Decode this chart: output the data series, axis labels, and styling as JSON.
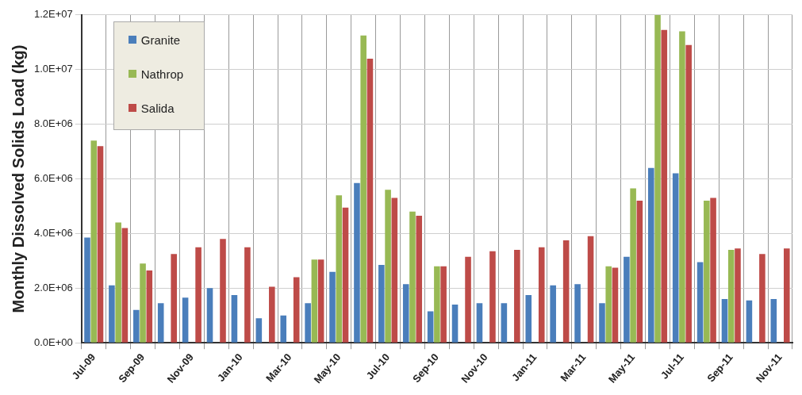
{
  "chart_data": {
    "type": "bar",
    "ylabel": "Monthly Dissolved Solids Load (kg)",
    "categories": [
      "Jul-09",
      null,
      "Sep-09",
      null,
      "Nov-09",
      null,
      "Jan-10",
      null,
      "Mar-10",
      null,
      "May-10",
      null,
      "Jul-10",
      null,
      "Sep-10",
      null,
      "Nov-10",
      null,
      "Jan-11",
      null,
      "Mar-11",
      null,
      "May-11",
      null,
      "Jul-11",
      null,
      "Sep-11",
      null,
      "Nov-11"
    ],
    "series": [
      {
        "name": "Granite",
        "color": "#4a7ebb",
        "values": [
          3850000,
          2100000,
          1200000,
          1450000,
          1650000,
          2000000,
          1750000,
          900000,
          1000000,
          1450000,
          2600000,
          5850000,
          2850000,
          2150000,
          1150000,
          1400000,
          1450000,
          1450000,
          1750000,
          2100000,
          2150000,
          1450000,
          3150000,
          6400000,
          6200000,
          2950000,
          1600000,
          1550000,
          1600000
        ]
      },
      {
        "name": "Nathrop",
        "color": "#98b954",
        "values": [
          7400000,
          4400000,
          2900000,
          null,
          null,
          null,
          null,
          null,
          null,
          3050000,
          5400000,
          11250000,
          5600000,
          4800000,
          2800000,
          null,
          null,
          null,
          null,
          null,
          null,
          2800000,
          5650000,
          12000000,
          11400000,
          5200000,
          3400000,
          null,
          null
        ]
      },
      {
        "name": "Salida",
        "color": "#be4b48",
        "values": [
          7200000,
          4200000,
          2650000,
          3250000,
          3500000,
          3800000,
          3500000,
          2050000,
          2400000,
          3050000,
          4950000,
          10400000,
          5300000,
          4650000,
          2800000,
          3150000,
          3350000,
          3400000,
          3500000,
          3750000,
          3900000,
          2750000,
          5200000,
          11450000,
          10900000,
          5300000,
          3450000,
          3250000,
          3450000
        ]
      }
    ],
    "ylim": [
      0,
      12000000
    ],
    "yticks": [
      {
        "value": 0,
        "label": "0.0E+00"
      },
      {
        "value": 2000000,
        "label": "2.0E+06"
      },
      {
        "value": 4000000,
        "label": "4.0E+06"
      },
      {
        "value": 6000000,
        "label": "6.0E+06"
      },
      {
        "value": 8000000,
        "label": "8.0E+06"
      },
      {
        "value": 10000000,
        "label": "1.0E+07"
      },
      {
        "value": 12000000,
        "label": "1.2E+07"
      }
    ],
    "grid": true,
    "legend": "top left"
  }
}
